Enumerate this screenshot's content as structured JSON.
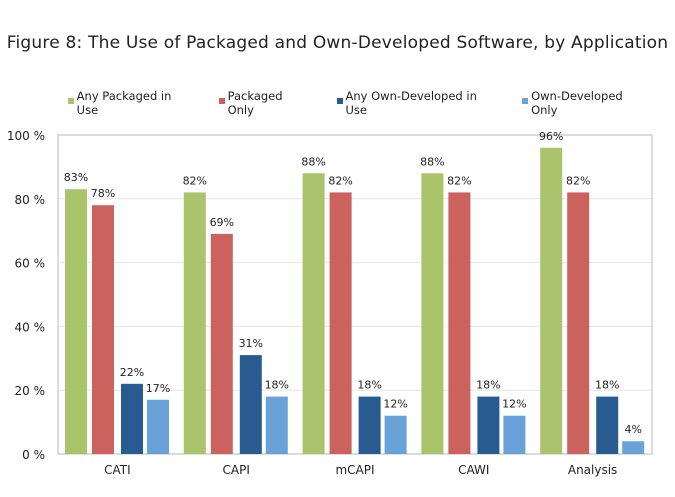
{
  "chart_data": {
    "type": "bar",
    "title": "Figure 8: The Use of Packaged and Own-Developed Software, by Application",
    "xlabel": "",
    "ylabel": "",
    "ylim": [
      0,
      100
    ],
    "yticks": [
      0,
      20,
      40,
      60,
      80,
      100
    ],
    "ytick_labels": [
      "0 %",
      "20 %",
      "40 %",
      "60 %",
      "80 %",
      "100 %"
    ],
    "grid": true,
    "legend_position": "top",
    "categories": [
      "CATI",
      "CAPI",
      "mCAPI",
      "CAWI",
      "Analysis"
    ],
    "series": [
      {
        "name": "Any Packaged in Use",
        "color": "#a9c46a",
        "values": [
          83,
          82,
          88,
          88,
          96
        ]
      },
      {
        "name": "Packaged Only",
        "color": "#cc625e",
        "values": [
          78,
          69,
          82,
          82,
          82
        ]
      },
      {
        "name": "Any Own-Developed in Use",
        "color": "#285c91",
        "values": [
          22,
          31,
          18,
          18,
          18
        ]
      },
      {
        "name": "Own-Developed Only",
        "color": "#69a2d9",
        "values": [
          17,
          18,
          12,
          12,
          4
        ]
      }
    ]
  }
}
